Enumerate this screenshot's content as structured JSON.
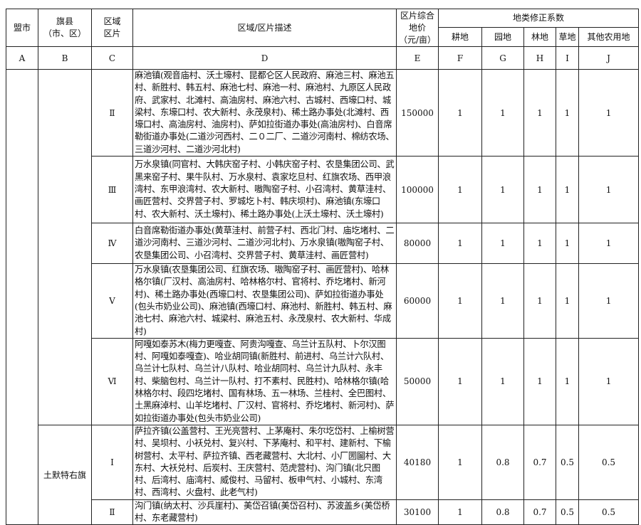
{
  "header": {
    "league_city": "盟市",
    "county": "旗县\n（市、区）",
    "county_l1": "旗县",
    "county_l2": "（市、区）",
    "zone_l1": "区域",
    "zone_l2": "区片",
    "description": "区域/区片描述",
    "price_l1": "区片综合",
    "price_l2": "地价",
    "price_l3": "（元/亩）",
    "coef_group": "地类修正系数",
    "coef_cols": [
      "耕地",
      "园地",
      "林地",
      "草地",
      "其他农用地"
    ],
    "letters": [
      "A",
      "B",
      "C",
      "D",
      "E",
      "F",
      "G",
      "H",
      "I",
      "J"
    ]
  },
  "county_name": "土默特右旗",
  "rows": [
    {
      "zone": "Ⅱ",
      "desc": "麻池镇(观音庙村、沃土壕村、昆都仑区人民政府、麻池三村、麻池五村、新胜村、韩五村、麻池七村、麻池一村、麻池村、九原区人民政府、武家村、北滩村、高油房村、麻池六村、古城村、西壕口村、城梁村、东壕口村、农大新村、永茂泉村)、稀土路办事处(北滩村、西壕口村、高油房村、油房村)、萨如拉街道办事处(高油房村)、白音席勒街道办事处(二道沙河西村、二０二厂、二道沙河南村、棉纺农场、三道沙河村、二道沙河北村)",
      "price": "150000",
      "coef": [
        "1",
        "1",
        "1",
        "1",
        "1"
      ]
    },
    {
      "zone": "Ⅲ",
      "desc": "万水泉镇(同官村、大韩庆窑子村、小韩庆窑子村、农垦集团公司、武黑来窑子村、果牛队村、万水泉村、袁家圪旦村、红旗农场、西甲浪湾村、东甲浪湾村、农大新村、嗷陶窑子村、小召湾村、黄草洼村、画匠营村、交界营子村、罗城圪卜村、韩庆坝村)、麻池镇(东壕口村、农大新村、沃土壕村)、稀土路办事处(上沃土壕村、沃土壕村)",
      "price": "100000",
      "coef": [
        "1",
        "1",
        "1",
        "1",
        "1"
      ]
    },
    {
      "zone": "Ⅳ",
      "desc": "白音席勒街道办事处(黄草洼村、前营子村、西北门村、庙圪堵村、二道沙河南村、三道沙河村、二道沙河北村)、万水泉镇(嗷陶窑子村、农垦集团公司、小召湾村、交界营子村、黄草洼村、画匠营村)",
      "price": "80000",
      "coef": [
        "1",
        "1",
        "1",
        "1",
        "1"
      ]
    },
    {
      "zone": "Ⅴ",
      "desc": "万水泉镇(农垦集团公司、红旗农场、嗷陶窑子村、画匠营村)、哈林格尔镇(厂汉村、高油房村、哈林格尔村、官将村、乔圪堵村、新河村)、稀土路办事处(西壕口村、农垦集团公司)、萨如拉街道办事处(包头市奶业公司)、麻池镇(西壕口村、麻池村、新胜村、韩五村、麻池七村、麻池六村、城梁村、麻池五村、永茂泉村、农大新村、华成村)",
      "price": "60000",
      "coef": [
        "1",
        "1",
        "1",
        "1",
        "1"
      ]
    },
    {
      "zone": "Ⅵ",
      "desc": "阿嘎如泰苏木(梅力更嘎查、阿贵沟嘎查、乌兰计五队村、卜尔汉图村、阿嘎如泰嘎查)、哈业胡同镇(新胜村、前进村、乌兰计六队村、乌兰计七队村、乌兰计八队村、哈业胡同村、乌兰计九队村、永丰村、柴脑包村、乌兰计一队村、打不素村、民胜村)、哈林格尔镇(哈林格尔村、段四圪堵村、国有林场、五一林场、兰桂村、全巴图村、土黑麻淖村、山羊圪堵村、厂汉村、官将村、乔圪堵村、新河村)、萨如拉街道办事处(包头市奶业公司)",
      "price": "50000",
      "coef": [
        "1",
        "1",
        "1",
        "1",
        "1"
      ]
    },
    {
      "zone": "Ⅰ",
      "desc": "萨拉齐镇(公盖营村、王光亮营村、上茅庵村、朱尔圪岱村、上榆树营村、吴坝村、小袄兑村、复兴村、下茅庵村、和平村、建新村、下榆树营村、太平村、萨拉齐镇、西老藏营村、大北村、小厂圐圙村、大东村、大袄兑村、后炭村、王庆营村、范虎营村)、沟门镇(北只图村、后湾村、庙湾村、威俊村、马留村、板申气村、小城村、东湾村、西湾村、火盘村、此老气村)",
      "price": "40180",
      "coef": [
        "1",
        "0.8",
        "0.7",
        "0.5",
        "0.5"
      ]
    },
    {
      "zone": "Ⅱ",
      "desc": "沟门镇(纳太村、沙兵崖村)、美岱召镇(美岱召村)、苏波盖乡(美岱桥村、东老藏营村)",
      "price": "30100",
      "coef": [
        "1",
        "0.8",
        "0.7",
        "0.5",
        "0.5"
      ]
    }
  ]
}
